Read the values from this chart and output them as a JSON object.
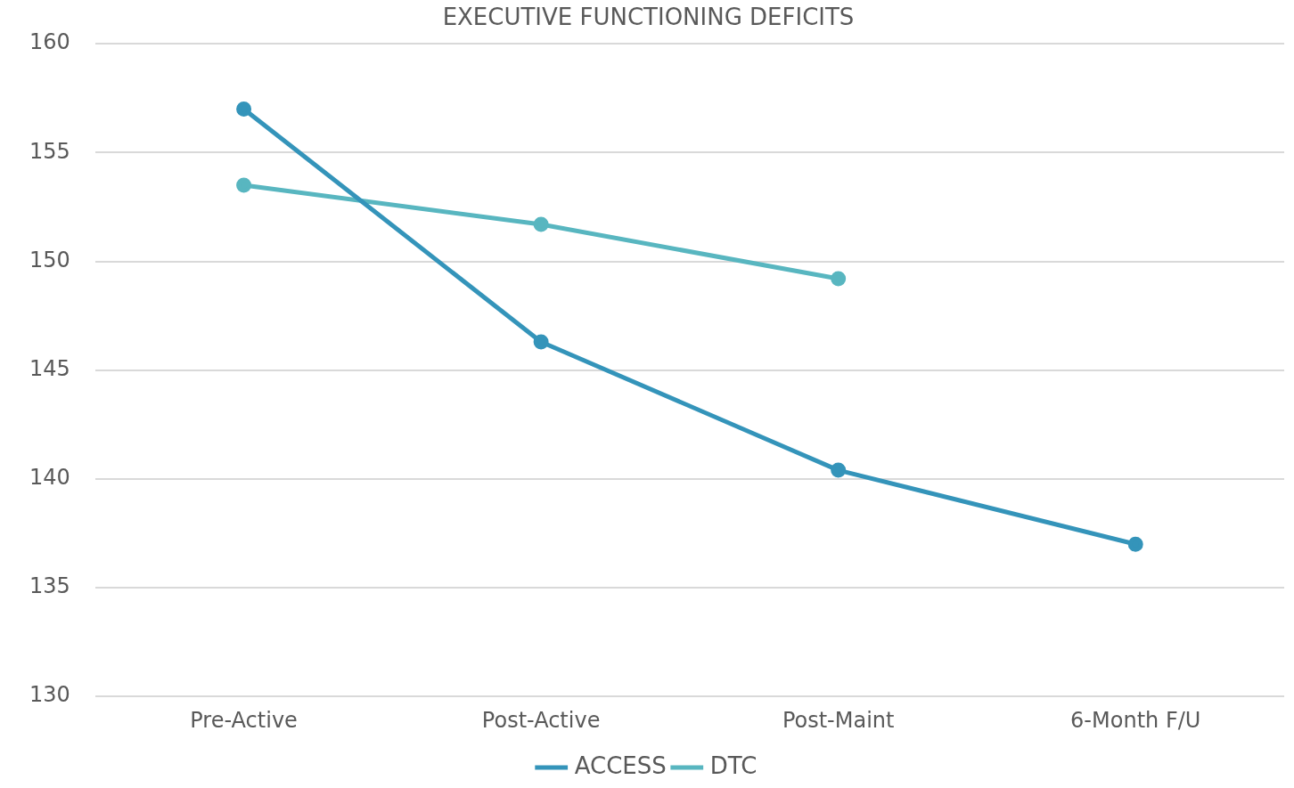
{
  "chart_data": {
    "type": "line",
    "title": "EXECUTIVE FUNCTIONING DEFICITS",
    "categories": [
      "Pre-Active",
      "Post-Active",
      "Post-Maint",
      "6-Month F/U"
    ],
    "series": [
      {
        "name": "ACCESS",
        "color": "#3494ba",
        "values": [
          157.0,
          146.3,
          140.4,
          137.0
        ]
      },
      {
        "name": "DTC",
        "color": "#58b6c0",
        "values": [
          153.5,
          151.7,
          149.2,
          null
        ]
      }
    ],
    "ylim": [
      130,
      160
    ],
    "yticks": [
      130,
      135,
      140,
      145,
      150,
      155,
      160
    ],
    "grid": "y",
    "legend": "bottom",
    "marker": "circle",
    "line_style": "solid"
  }
}
